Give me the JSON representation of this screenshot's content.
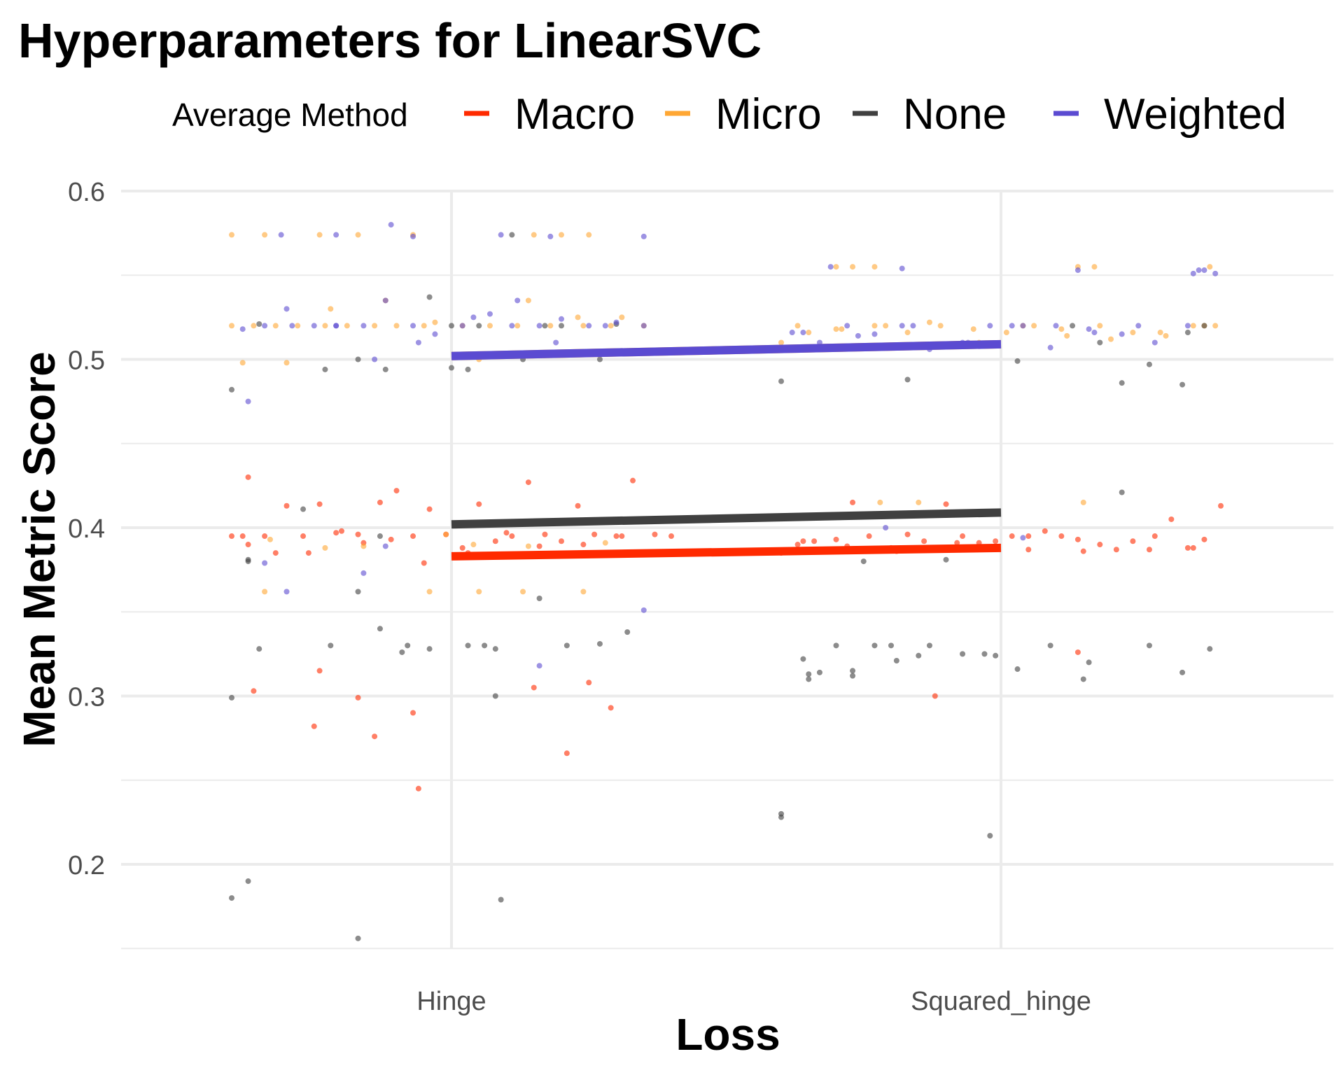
{
  "chart_data": {
    "type": "scatter",
    "title": "Hyperparameters for LinearSVC",
    "xlabel": "Loss",
    "ylabel": "Mean Metric Score",
    "categories": [
      "Hinge",
      "Squared_hinge"
    ],
    "ylim": [
      0.15,
      0.6
    ],
    "yticks": [
      "0.2",
      "0.3",
      "0.4",
      "0.5",
      "0.6"
    ],
    "grid": true,
    "legend": {
      "title": "Average Method",
      "placement": "top",
      "entries": [
        "Macro",
        "Micro",
        "None",
        "Weighted"
      ]
    },
    "colors": {
      "Macro": "#ff2a00",
      "Micro": "#ffa733",
      "None": "#404040",
      "Weighted": "#5b4bd1"
    },
    "trend_lines": [
      {
        "name": "Macro",
        "x": [
          1,
          2
        ],
        "y": [
          0.383,
          0.388
        ]
      },
      {
        "name": "None",
        "x": [
          1,
          2
        ],
        "y": [
          0.402,
          0.409
        ]
      },
      {
        "name": "Micro",
        "x": [
          1,
          2
        ],
        "y": [
          0.502,
          0.509
        ]
      },
      {
        "name": "Weighted",
        "x": [
          1,
          2
        ],
        "y": [
          0.502,
          0.509
        ]
      }
    ],
    "series": [
      {
        "name": "Macro",
        "x": [
          0.6,
          0.63,
          0.66,
          0.7,
          0.73,
          0.76,
          0.8,
          0.83,
          0.87,
          0.9,
          0.93,
          0.96,
          0.99,
          1.02,
          1.05,
          1.08,
          1.11,
          1.14,
          1.17,
          1.2,
          1.23,
          1.26,
          1.3,
          1.33,
          1.37,
          1.4,
          1.6,
          1.63,
          1.66,
          1.7,
          1.73,
          1.76,
          1.8,
          1.83,
          1.86,
          1.9,
          1.93,
          1.96,
          1.99,
          2.02,
          2.05,
          2.08,
          2.11,
          2.14,
          2.18,
          2.21,
          2.24,
          2.28,
          2.31,
          2.34,
          2.37,
          2.4,
          0.62,
          0.68,
          0.74,
          0.79,
          0.84,
          0.89,
          0.95,
          1.03,
          1.1,
          1.16,
          1.24,
          1.31,
          1.64,
          1.72,
          1.81,
          1.92,
          2.05,
          2.15,
          2.27,
          2.35,
          0.63,
          0.76,
          0.83,
          0.93,
          1.15,
          1.25,
          1.29,
          1.88,
          2.14,
          0.64,
          0.75,
          0.86,
          0.94,
          1.21
        ],
        "y": [
          0.395,
          0.39,
          0.395,
          0.413,
          0.395,
          0.414,
          0.398,
          0.396,
          0.415,
          0.422,
          0.395,
          0.411,
          0.396,
          0.388,
          0.414,
          0.392,
          0.395,
          0.427,
          0.396,
          0.392,
          0.413,
          0.396,
          0.395,
          0.428,
          0.396,
          0.395,
          0.385,
          0.39,
          0.392,
          0.393,
          0.415,
          0.395,
          0.388,
          0.396,
          0.392,
          0.414,
          0.395,
          0.391,
          0.392,
          0.395,
          0.387,
          0.398,
          0.395,
          0.393,
          0.39,
          0.387,
          0.392,
          0.395,
          0.405,
          0.388,
          0.393,
          0.413,
          0.395,
          0.385,
          0.385,
          0.397,
          0.391,
          0.393,
          0.379,
          0.385,
          0.397,
          0.389,
          0.39,
          0.395,
          0.392,
          0.389,
          0.386,
          0.391,
          0.395,
          0.386,
          0.387,
          0.388,
          0.43,
          0.315,
          0.299,
          0.29,
          0.305,
          0.308,
          0.293,
          0.3,
          0.326,
          0.303,
          0.282,
          0.276,
          0.245,
          0.266
        ]
      },
      {
        "name": "Micro",
        "x": [
          0.6,
          0.64,
          0.68,
          0.72,
          0.77,
          0.81,
          0.86,
          0.9,
          0.95,
          1.02,
          1.07,
          1.12,
          1.18,
          1.24,
          1.29,
          1.35,
          1.6,
          1.65,
          1.71,
          1.77,
          1.83,
          1.89,
          1.95,
          2.01,
          2.06,
          2.12,
          2.18,
          2.24,
          2.3,
          2.35,
          2.39,
          0.62,
          0.7,
          0.78,
          0.88,
          0.97,
          1.05,
          1.14,
          1.23,
          1.31,
          1.63,
          1.7,
          1.79,
          1.87,
          1.96,
          2.04,
          2.11,
          2.2,
          2.29,
          2.37,
          0.6,
          0.66,
          0.76,
          0.83,
          0.93,
          1.15,
          1.2,
          1.25,
          1.7,
          1.73,
          1.77,
          2.14,
          2.17,
          2.38,
          0.66,
          0.77,
          0.84,
          0.96,
          1.05,
          1.13,
          1.24,
          1.78,
          1.85,
          2.15,
          0.67,
          0.99,
          1.04,
          1.14,
          1.28
        ],
        "y": [
          0.52,
          0.52,
          0.52,
          0.52,
          0.52,
          0.52,
          0.52,
          0.52,
          0.52,
          0.52,
          0.52,
          0.52,
          0.52,
          0.52,
          0.52,
          0.52,
          0.51,
          0.516,
          0.518,
          0.52,
          0.516,
          0.52,
          0.518,
          0.516,
          0.52,
          0.514,
          0.52,
          0.516,
          0.514,
          0.52,
          0.52,
          0.498,
          0.498,
          0.53,
          0.535,
          0.522,
          0.5,
          0.535,
          0.525,
          0.525,
          0.52,
          0.518,
          0.52,
          0.522,
          0.51,
          0.52,
          0.518,
          0.512,
          0.516,
          0.52,
          0.574,
          0.574,
          0.574,
          0.574,
          0.574,
          0.574,
          0.574,
          0.574,
          0.555,
          0.555,
          0.555,
          0.555,
          0.555,
          0.555,
          0.362,
          0.388,
          0.389,
          0.362,
          0.362,
          0.362,
          0.362,
          0.415,
          0.415,
          0.415,
          0.393,
          0.396,
          0.39,
          0.389,
          0.391
        ]
      },
      {
        "name": "None",
        "x": [
          0.6,
          0.63,
          0.65,
          0.73,
          0.78,
          0.83,
          0.87,
          0.91,
          0.96,
          1.0,
          1.03,
          1.08,
          1.16,
          1.21,
          1.27,
          1.32,
          1.6,
          1.65,
          1.7,
          1.75,
          1.8,
          1.85,
          1.9,
          1.97,
          2.03,
          2.09,
          2.16,
          2.22,
          2.27,
          2.33,
          2.38,
          0.6,
          0.63,
          0.77,
          0.83,
          0.88,
          0.92,
          0.96,
          1.0,
          1.03,
          1.06,
          1.08,
          1.13,
          1.2,
          1.27,
          1.6,
          1.64,
          1.67,
          1.73,
          1.77,
          1.83,
          1.87,
          1.93,
          1.99,
          2.03,
          2.13,
          2.18,
          2.22,
          2.27,
          2.34,
          2.37,
          0.6,
          0.63,
          0.83,
          1.09,
          1.6,
          1.98,
          0.65,
          0.87,
          1.05,
          1.11,
          1.17,
          1.3,
          1.65,
          1.73,
          1.81,
          2.15,
          2.33
        ],
        "y": [
          0.482,
          0.38,
          0.328,
          0.411,
          0.33,
          0.362,
          0.34,
          0.326,
          0.537,
          0.495,
          0.33,
          0.3,
          0.358,
          0.33,
          0.331,
          0.338,
          0.487,
          0.31,
          0.33,
          0.38,
          0.33,
          0.324,
          0.381,
          0.325,
          0.499,
          0.33,
          0.32,
          0.421,
          0.33,
          0.485,
          0.328,
          0.299,
          0.381,
          0.494,
          0.5,
          0.494,
          0.33,
          0.328,
          0.52,
          0.494,
          0.33,
          0.328,
          0.5,
          0.52,
          0.5,
          0.23,
          0.322,
          0.314,
          0.312,
          0.33,
          0.488,
          0.33,
          0.325,
          0.324,
          0.316,
          0.52,
          0.51,
          0.486,
          0.497,
          0.516,
          0.52,
          0.18,
          0.19,
          0.156,
          0.179,
          0.228,
          0.217,
          0.521,
          0.395,
          0.52,
          0.574,
          0.52,
          0.521,
          0.313,
          0.315,
          0.321,
          0.31,
          0.314
        ]
      },
      {
        "name": "Weighted",
        "x": [
          0.62,
          0.66,
          0.7,
          0.75,
          0.79,
          0.84,
          0.88,
          0.93,
          0.97,
          1.02,
          1.07,
          1.11,
          1.16,
          1.2,
          1.25,
          1.3,
          1.35,
          1.62,
          1.67,
          1.72,
          1.77,
          1.82,
          1.87,
          1.93,
          1.98,
          2.04,
          2.1,
          2.16,
          2.22,
          2.28,
          2.34,
          2.39,
          0.63,
          0.71,
          0.79,
          0.86,
          0.94,
          1.04,
          1.12,
          1.19,
          1.28,
          1.64,
          1.74,
          1.84,
          1.94,
          2.02,
          2.09,
          2.17,
          2.25,
          2.36,
          0.69,
          0.79,
          0.89,
          0.93,
          1.09,
          1.18,
          1.35,
          1.69,
          1.82,
          2.14,
          2.37,
          2.35,
          0.66,
          0.7,
          0.84,
          0.88,
          1.16,
          1.35,
          1.79,
          2.04
        ],
        "y": [
          0.518,
          0.52,
          0.53,
          0.52,
          0.52,
          0.52,
          0.535,
          0.52,
          0.515,
          0.52,
          0.527,
          0.52,
          0.52,
          0.524,
          0.52,
          0.522,
          0.52,
          0.516,
          0.51,
          0.52,
          0.515,
          0.52,
          0.506,
          0.51,
          0.52,
          0.52,
          0.52,
          0.518,
          0.515,
          0.51,
          0.52,
          0.551,
          0.475,
          0.52,
          0.52,
          0.5,
          0.51,
          0.525,
          0.535,
          0.51,
          0.52,
          0.516,
          0.514,
          0.52,
          0.51,
          0.52,
          0.507,
          0.516,
          0.52,
          0.553,
          0.574,
          0.574,
          0.58,
          0.573,
          0.574,
          0.573,
          0.573,
          0.555,
          0.554,
          0.553,
          0.553,
          0.551,
          0.379,
          0.362,
          0.373,
          0.389,
          0.318,
          0.351,
          0.4,
          0.394
        ]
      }
    ]
  }
}
